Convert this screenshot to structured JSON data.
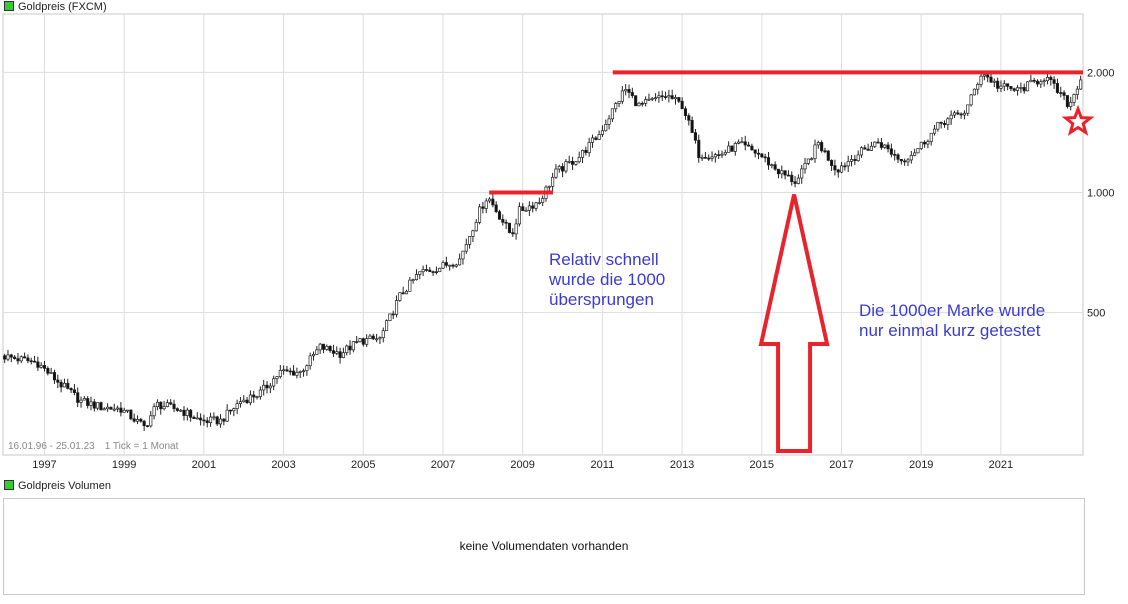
{
  "panel_main": {
    "title": "Goldpreis (FXCM)"
  },
  "panel_volume": {
    "title": "Goldpreis Volumen",
    "message": "keine Volumendaten vorhanden"
  },
  "colors": {
    "up_candle": "#ffffff",
    "down_candle": "#111111",
    "grid": "#dddddd",
    "annotation_red": "#e8232b",
    "annotation_text": "#3b3bd1",
    "title_swatch": "#33cc33"
  },
  "chart_data": {
    "type": "candlestick",
    "title": "Goldpreis (FXCM)",
    "range_text": "16.01.96 - 25.01.23",
    "tick_text": "1 Tick = 1 Monat",
    "y_scale": "log",
    "ylim": [
      220,
      2800
    ],
    "y_ticks": [
      {
        "value": 500,
        "label": "500"
      },
      {
        "value": 1000,
        "label": "1.000"
      },
      {
        "value": 2000,
        "label": "2.000"
      }
    ],
    "x_ticks": [
      "1997",
      "1999",
      "2001",
      "2003",
      "2005",
      "2007",
      "2009",
      "2011",
      "2013",
      "2015",
      "2017",
      "2019",
      "2021"
    ],
    "x_range": [
      1996.0,
      2023.1
    ],
    "price_anchors": [
      [
        1996.0,
        390
      ],
      [
        1996.9,
        375
      ],
      [
        1997.5,
        330
      ],
      [
        1998.0,
        300
      ],
      [
        1998.5,
        290
      ],
      [
        1999.0,
        287
      ],
      [
        1999.6,
        258
      ],
      [
        1999.9,
        295
      ],
      [
        2000.5,
        285
      ],
      [
        2001.0,
        268
      ],
      [
        2001.5,
        268
      ],
      [
        2002.0,
        300
      ],
      [
        2002.5,
        315
      ],
      [
        2003.0,
        355
      ],
      [
        2003.5,
        355
      ],
      [
        2004.0,
        410
      ],
      [
        2004.5,
        395
      ],
      [
        2005.0,
        425
      ],
      [
        2005.5,
        430
      ],
      [
        2006.0,
        550
      ],
      [
        2006.5,
        630
      ],
      [
        2007.0,
        650
      ],
      [
        2007.5,
        680
      ],
      [
        2008.0,
        900
      ],
      [
        2008.2,
        980
      ],
      [
        2008.8,
        780
      ],
      [
        2009.0,
        900
      ],
      [
        2009.5,
        950
      ],
      [
        2009.9,
        1120
      ],
      [
        2010.5,
        1230
      ],
      [
        2011.0,
        1400
      ],
      [
        2011.65,
        1820
      ],
      [
        2012.0,
        1650
      ],
      [
        2012.7,
        1750
      ],
      [
        2013.1,
        1650
      ],
      [
        2013.5,
        1250
      ],
      [
        2014.0,
        1240
      ],
      [
        2014.5,
        1320
      ],
      [
        2015.0,
        1250
      ],
      [
        2015.5,
        1130
      ],
      [
        2015.95,
        1060
      ],
      [
        2016.5,
        1330
      ],
      [
        2016.95,
        1140
      ],
      [
        2017.5,
        1250
      ],
      [
        2018.0,
        1340
      ],
      [
        2018.6,
        1200
      ],
      [
        2019.0,
        1290
      ],
      [
        2019.6,
        1500
      ],
      [
        2020.2,
        1600
      ],
      [
        2020.6,
        2000
      ],
      [
        2021.0,
        1850
      ],
      [
        2021.5,
        1800
      ],
      [
        2022.2,
        1950
      ],
      [
        2022.8,
        1650
      ],
      [
        2023.07,
        1930
      ]
    ],
    "annotations": [
      {
        "type": "hline",
        "value": 1000,
        "from": 2008.2,
        "to": 2009.8
      },
      {
        "type": "hline",
        "value": 2000,
        "from": 2011.3,
        "to": 2023.1
      },
      {
        "type": "up-arrow",
        "at": 2015.85
      },
      {
        "type": "star",
        "at": 2023.0
      }
    ],
    "notes": [
      {
        "lines": [
          "Relativ schnell",
          "wurde die 1000",
          "übersprungen"
        ]
      },
      {
        "lines": [
          "Die 1000er Marke wurde",
          "nur einmal kurz getestet"
        ]
      }
    ]
  }
}
